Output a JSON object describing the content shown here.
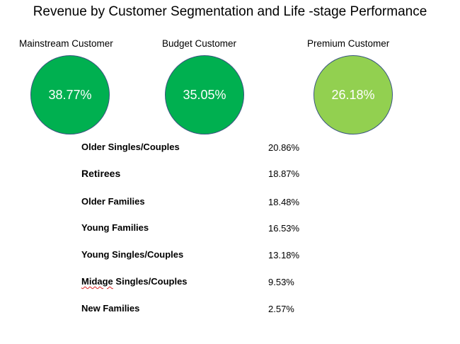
{
  "title": "Revenue by Customer Segmentation and Life -stage Performance",
  "segments": [
    {
      "label": "Mainstream Customer",
      "value": "38.77%",
      "color": "#00b050"
    },
    {
      "label": "Budget Customer",
      "value": "35.05%",
      "color": "#00b050"
    },
    {
      "label": "Premium Customer",
      "value": "26.18%",
      "color": "#92d050"
    }
  ],
  "lifestages": [
    {
      "label_first": "Older",
      "label_rest": " Singles/Couples",
      "value": "20.86%"
    },
    {
      "label_first": "Retirees",
      "label_rest": "",
      "value": "18.87%"
    },
    {
      "label_first": "Older",
      "label_rest": " Families",
      "value": "18.48%"
    },
    {
      "label_first": "Young",
      "label_rest": " Families",
      "value": "16.53%"
    },
    {
      "label_first": "Young",
      "label_rest": " Singles/Couples",
      "value": "13.18%"
    },
    {
      "label_first": "Midage",
      "label_rest": " Singles/Couples",
      "value": "9.53%"
    },
    {
      "label_first": "New",
      "label_rest": " Families",
      "value": "2.57%"
    }
  ]
}
